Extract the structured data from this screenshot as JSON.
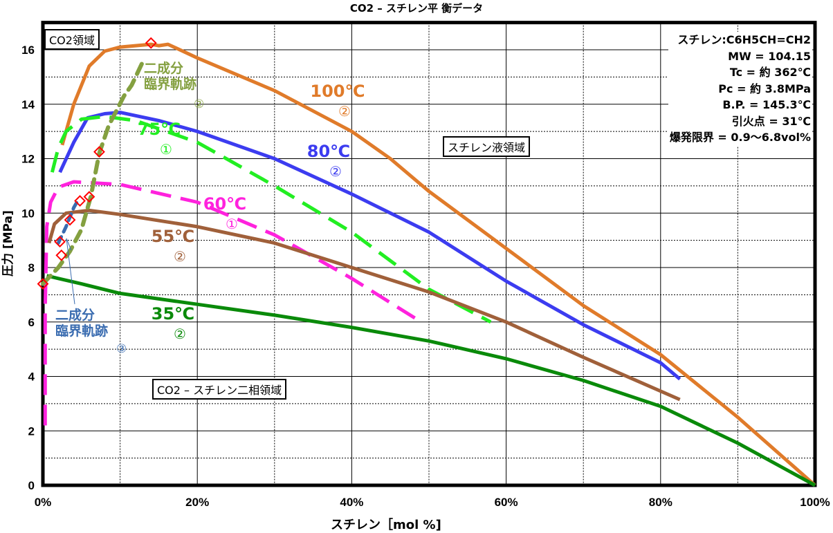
{
  "chart_data": {
    "type": "line",
    "title": "CO2 – スチレン平 衡データ",
    "xlabel": "スチレン［mol %]",
    "ylabel": "圧力 [MPa]",
    "xlim": [
      0,
      100
    ],
    "ylim": [
      0,
      17
    ],
    "x_ticks": [
      "0%",
      "20%",
      "40%",
      "60%",
      "80%",
      "100%"
    ],
    "y_ticks": [
      "0",
      "2",
      "4",
      "6",
      "8",
      "10",
      "12",
      "14",
      "16"
    ],
    "grid": true,
    "series": [
      {
        "name": "100℃",
        "marker": "②",
        "color": "#e07b2a",
        "dash": false,
        "points": [
          [
            2.5,
            12.5
          ],
          [
            4,
            14.0
          ],
          [
            6,
            15.4
          ],
          [
            8,
            15.95
          ],
          [
            10,
            16.1
          ],
          [
            14,
            16.2
          ],
          [
            15,
            16.15
          ],
          [
            16.2,
            16.2
          ],
          [
            20,
            15.7
          ],
          [
            30,
            14.5
          ],
          [
            40,
            13.0
          ],
          [
            45,
            12.0
          ],
          [
            50,
            10.8
          ],
          [
            60,
            8.7
          ],
          [
            70,
            6.6
          ],
          [
            80,
            4.8
          ],
          [
            90,
            2.5
          ],
          [
            100,
            0
          ]
        ]
      },
      {
        "name": "80℃",
        "marker": "②",
        "color": "#3c3cf0",
        "dash": false,
        "points": [
          [
            2.2,
            11.5
          ],
          [
            4,
            12.6
          ],
          [
            5.8,
            13.5
          ],
          [
            8,
            13.65
          ],
          [
            10,
            13.7
          ],
          [
            15,
            13.4
          ],
          [
            20,
            13.0
          ],
          [
            30,
            12.0
          ],
          [
            40,
            10.7
          ],
          [
            50,
            9.3
          ],
          [
            60,
            7.5
          ],
          [
            70,
            5.9
          ],
          [
            80,
            4.5
          ],
          [
            82.5,
            3.9
          ]
        ]
      },
      {
        "name": "75℃",
        "marker": "①",
        "color": "#22ee22",
        "dash": true,
        "points": [
          [
            1.2,
            11.5
          ],
          [
            2,
            12.4
          ],
          [
            3,
            13.0
          ],
          [
            5,
            13.45
          ],
          [
            8,
            13.55
          ],
          [
            12,
            13.4
          ],
          [
            20,
            12.6
          ],
          [
            30,
            11.0
          ],
          [
            40,
            9.3
          ],
          [
            50,
            7.2
          ],
          [
            58,
            6.0
          ]
        ]
      },
      {
        "name": "60℃",
        "marker": "①",
        "color": "#ff22dd",
        "dash": true,
        "points": [
          [
            0.3,
            2.2
          ],
          [
            0.3,
            6.5
          ],
          [
            0.5,
            9.5
          ],
          [
            1,
            10.4
          ],
          [
            2,
            10.95
          ],
          [
            4,
            11.15
          ],
          [
            10,
            11.05
          ],
          [
            20,
            10.4
          ],
          [
            30,
            9.2
          ],
          [
            40,
            7.6
          ],
          [
            49,
            6.0
          ]
        ]
      },
      {
        "name": "55℃",
        "marker": "②",
        "color": "#a0603a",
        "dash": false,
        "points": [
          [
            0.8,
            8.9
          ],
          [
            1.5,
            9.6
          ],
          [
            3,
            10.0
          ],
          [
            6,
            10.1
          ],
          [
            10,
            9.95
          ],
          [
            20,
            9.5
          ],
          [
            30,
            8.9
          ],
          [
            40,
            8.0
          ],
          [
            50,
            7.1
          ],
          [
            60,
            6.0
          ],
          [
            70,
            4.7
          ],
          [
            82.5,
            3.15
          ]
        ]
      },
      {
        "name": "35℃",
        "marker": "②",
        "color": "#0a8a0a",
        "dash": false,
        "points": [
          [
            0.5,
            7.7
          ],
          [
            2,
            7.6
          ],
          [
            5,
            7.4
          ],
          [
            10,
            7.05
          ],
          [
            20,
            6.65
          ],
          [
            30,
            6.25
          ],
          [
            40,
            5.8
          ],
          [
            50,
            5.3
          ],
          [
            60,
            4.65
          ],
          [
            70,
            3.85
          ],
          [
            80,
            2.9
          ],
          [
            90,
            1.55
          ],
          [
            100,
            0
          ]
        ]
      }
    ],
    "critical_loci": [
      {
        "name": "二成分 臨界軌跡",
        "marker": "②",
        "color": "#84a040",
        "points": [
          [
            0,
            7.4
          ],
          [
            2,
            8.0
          ],
          [
            3.5,
            8.6
          ],
          [
            5,
            9.4
          ],
          [
            6.2,
            10.6
          ],
          [
            7.3,
            12.2
          ],
          [
            8.5,
            13.2
          ],
          [
            10.5,
            14.3
          ],
          [
            11.5,
            14.7
          ],
          [
            13,
            15.6
          ]
        ]
      },
      {
        "name": "二成分 臨界軌跡",
        "marker": "③",
        "color": "#3a6cb0",
        "points": [
          [
            2,
            8.9
          ],
          [
            3,
            9.5
          ],
          [
            4,
            10.2
          ],
          [
            4.6,
            10.5
          ]
        ]
      }
    ],
    "red_diamonds": [
      [
        0,
        7.4
      ],
      [
        2.4,
        8.45
      ],
      [
        2.2,
        8.95
      ],
      [
        3.5,
        9.75
      ],
      [
        4.8,
        10.45
      ],
      [
        6,
        10.6
      ],
      [
        7.3,
        12.25
      ],
      [
        14,
        16.25
      ]
    ],
    "annotations": {
      "co2_region": "CO2領域",
      "liquid_region": "スチレン液領域",
      "two_phase_region": "CO2 – スチレン二相領域",
      "info": [
        "スチレン:C6H5CH=CH2",
        "MW = 104.15",
        "Tc  = 約 362℃",
        "Pc  = 約 3.8MPa",
        "B.P. = 145.3℃",
        "引火点 = 31℃",
        "爆発限界 = 0.9～6.8vol%"
      ]
    }
  }
}
